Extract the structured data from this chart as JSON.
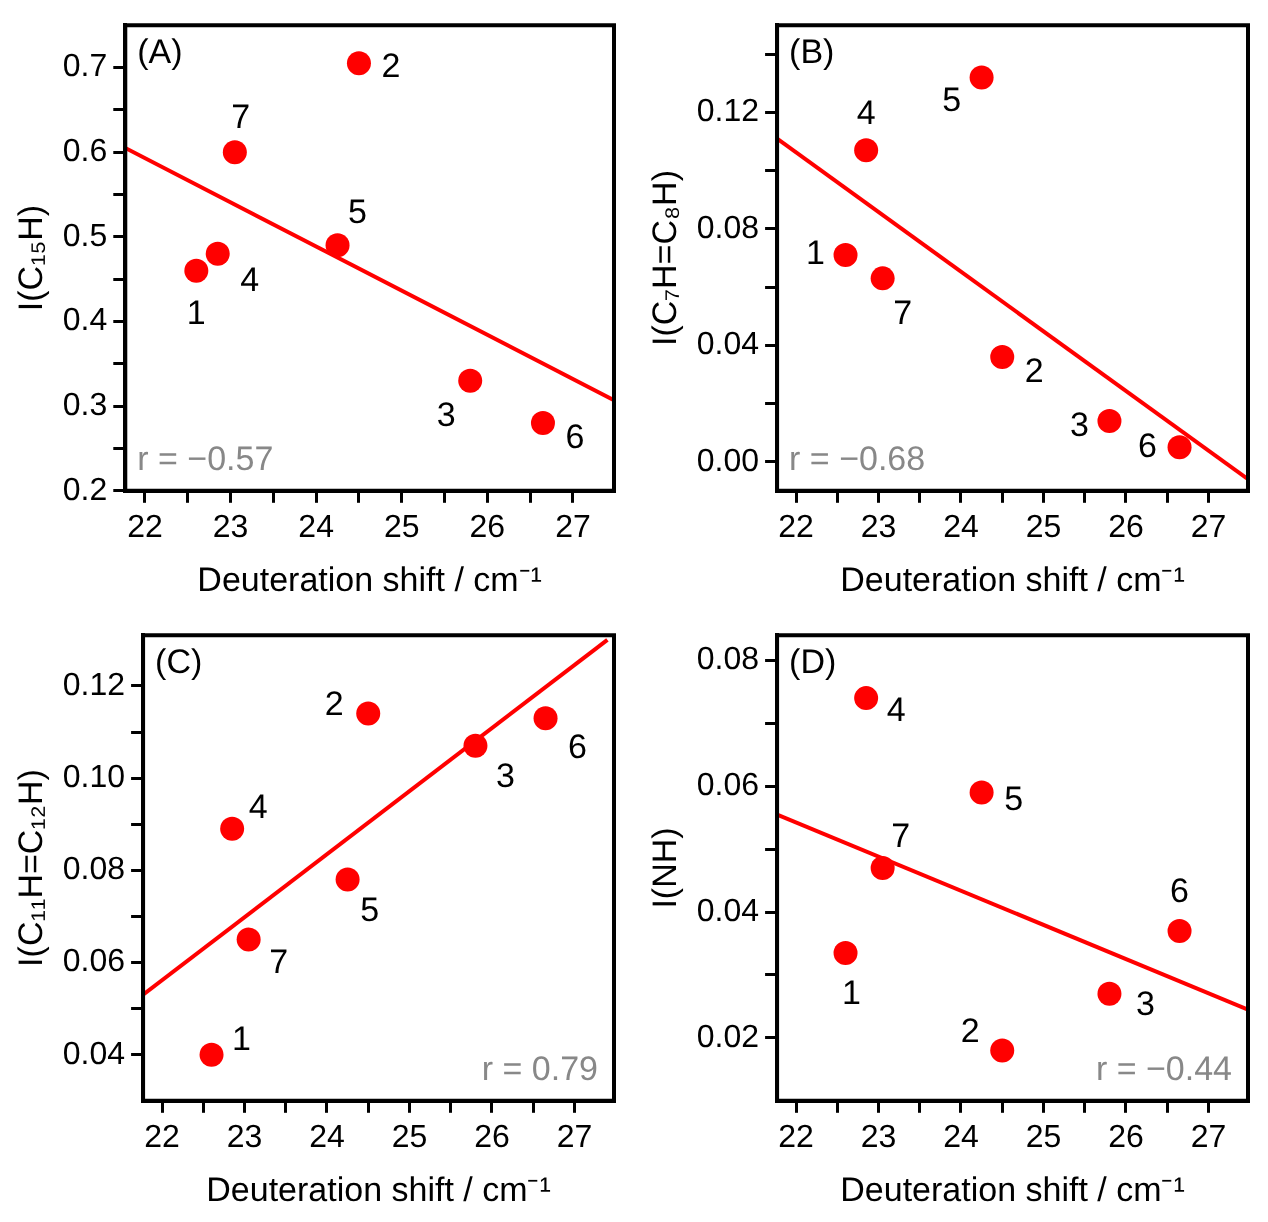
{
  "chart_data": [
    {
      "type": "scatter",
      "xlabel": "Deuteration shift / cm⁻¹",
      "ylabel": "I(C₁₅H)",
      "xlim": [
        21.77,
        27.48
      ],
      "ylim": [
        0.2,
        0.75
      ],
      "xticks": [
        22,
        {
          "value": 22.5,
          "label": null
        },
        23,
        {
          "value": 23.5,
          "label": null
        },
        24,
        {
          "value": 24.5,
          "label": null
        },
        25,
        {
          "value": 25.5,
          "label": null
        },
        26,
        {
          "value": 26.5,
          "label": null
        },
        27
      ],
      "yticks": [
        0.2,
        {
          "value": 0.25,
          "label": null
        },
        0.3,
        {
          "value": 0.35,
          "label": null
        },
        0.4,
        {
          "value": 0.45,
          "label": null
        },
        0.5,
        {
          "value": 0.55,
          "label": null
        },
        0.6,
        {
          "value": 0.65,
          "label": null
        },
        0.7
      ],
      "annotations": [
        "(A)",
        "r = −0.57",
        {
          "text": "1",
          "x": 22.6,
          "y": 0.46
        },
        {
          "text": "2",
          "x": 24.5,
          "y": 0.705
        },
        {
          "text": "3",
          "x": 25.8,
          "y": 0.33
        },
        {
          "text": "4",
          "x": 22.85,
          "y": 0.48
        },
        {
          "text": "5",
          "x": 24.25,
          "y": 0.49
        },
        {
          "text": "6",
          "x": 26.65,
          "y": 0.28
        },
        {
          "text": "7",
          "x": 23.05,
          "y": 0.6
        }
      ],
      "series": [
        {
          "marker": "circle",
          "color": "#ff0000",
          "x": [
            22.6,
            24.5,
            25.8,
            22.85,
            24.25,
            26.65,
            23.05
          ],
          "values": [
            0.46,
            0.705,
            0.33,
            0.48,
            0.49,
            0.28,
            0.6
          ]
        },
        {
          "type": "line",
          "color": "#ff0000",
          "x": [
            21.77,
            27.48
          ],
          "values": [
            0.605,
            0.307
          ]
        }
      ]
    },
    {
      "type": "scatter",
      "xlabel": "Deuteration shift / cm⁻¹",
      "ylabel": "I(C₇H=C₈H)",
      "xlim": [
        21.77,
        27.48
      ],
      "ylim": [
        -0.01,
        0.15
      ],
      "xticks": [
        22,
        {
          "value": 22.5,
          "label": null
        },
        23,
        {
          "value": 23.5,
          "label": null
        },
        24,
        {
          "value": 24.5,
          "label": null
        },
        25,
        {
          "value": 25.5,
          "label": null
        },
        26,
        {
          "value": 26.5,
          "label": null
        },
        27
      ],
      "yticks": [
        {
          "value": 0,
          "label": "0.00"
        },
        {
          "value": 0.02,
          "label": null
        },
        0.04,
        {
          "value": 0.06,
          "label": null
        },
        0.08,
        {
          "value": 0.1,
          "label": null
        },
        0.12,
        {
          "value": 0.14,
          "label": null
        }
      ],
      "annotations": [
        "(B)",
        "r = −0.68",
        {
          "text": "1",
          "x": 22.6,
          "y": 0.071
        },
        {
          "text": "2",
          "x": 24.5,
          "y": 0.036
        },
        {
          "text": "3",
          "x": 25.8,
          "y": 0.014
        },
        {
          "text": "4",
          "x": 22.85,
          "y": 0.107
        },
        {
          "text": "5",
          "x": 24.25,
          "y": 0.132
        },
        {
          "text": "6",
          "x": 26.65,
          "y": 0.005
        },
        {
          "text": "7",
          "x": 23.05,
          "y": 0.063
        }
      ],
      "series": [
        {
          "marker": "circle",
          "color": "#ff0000",
          "x": [
            22.6,
            24.5,
            25.8,
            22.85,
            24.25,
            26.65,
            23.05
          ],
          "values": [
            0.071,
            0.036,
            0.014,
            0.107,
            0.132,
            0.005,
            0.063
          ]
        },
        {
          "type": "line",
          "color": "#ff0000",
          "x": [
            21.77,
            27.48
          ],
          "values": [
            0.111,
            -0.006
          ]
        }
      ]
    },
    {
      "type": "scatter",
      "xlabel": "Deuteration shift / cm⁻¹",
      "ylabel": "I(C₁₁H=C₁₂H)",
      "xlim": [
        21.77,
        27.48
      ],
      "ylim": [
        0.03,
        0.131
      ],
      "xticks": [
        22,
        {
          "value": 22.5,
          "label": null
        },
        23,
        {
          "value": 23.5,
          "label": null
        },
        24,
        {
          "value": 24.5,
          "label": null
        },
        25,
        {
          "value": 25.5,
          "label": null
        },
        26,
        {
          "value": 26.5,
          "label": null
        },
        27
      ],
      "yticks": [
        0.04,
        {
          "value": 0.05,
          "label": null
        },
        0.06,
        {
          "value": 0.07,
          "label": null
        },
        0.08,
        {
          "value": 0.09,
          "label": null
        },
        {
          "value": 0.1,
          "label": "0.10"
        },
        {
          "value": 0.11,
          "label": null
        },
        0.12
      ],
      "annotations": [
        "(C)",
        "r = 0.79",
        {
          "text": "1",
          "x": 22.6,
          "y": 0.04
        },
        {
          "text": "2",
          "x": 24.5,
          "y": 0.114
        },
        {
          "text": "3",
          "x": 25.8,
          "y": 0.107
        },
        {
          "text": "4",
          "x": 22.85,
          "y": 0.089
        },
        {
          "text": "5",
          "x": 24.25,
          "y": 0.078
        },
        {
          "text": "6",
          "x": 26.65,
          "y": 0.113
        },
        {
          "text": "7",
          "x": 23.05,
          "y": 0.065
        }
      ],
      "series": [
        {
          "marker": "circle",
          "color": "#ff0000",
          "x": [
            22.6,
            24.5,
            25.8,
            22.85,
            24.25,
            26.65,
            23.05
          ],
          "values": [
            0.04,
            0.114,
            0.107,
            0.089,
            0.078,
            0.113,
            0.065
          ]
        },
        {
          "type": "line",
          "color": "#ff0000",
          "x": [
            21.77,
            27.4
          ],
          "values": [
            0.053,
            0.13
          ]
        }
      ]
    },
    {
      "type": "scatter",
      "xlabel": "Deuteration shift / cm⁻¹",
      "ylabel": "I(NH)",
      "xlim": [
        21.77,
        27.48
      ],
      "ylim": [
        0.01,
        0.084
      ],
      "xticks": [
        22,
        {
          "value": 22.5,
          "label": null
        },
        23,
        {
          "value": 23.5,
          "label": null
        },
        24,
        {
          "value": 24.5,
          "label": null
        },
        25,
        {
          "value": 25.5,
          "label": null
        },
        26,
        {
          "value": 26.5,
          "label": null
        },
        27
      ],
      "yticks": [
        0.02,
        {
          "value": 0.03,
          "label": null
        },
        0.04,
        {
          "value": 0.05,
          "label": null
        },
        0.06,
        {
          "value": 0.07,
          "label": null
        },
        0.08
      ],
      "annotations": [
        "(D)",
        "r = −0.44",
        {
          "text": "1",
          "x": 22.6,
          "y": 0.0335
        },
        {
          "text": "2",
          "x": 24.5,
          "y": 0.018
        },
        {
          "text": "3",
          "x": 25.8,
          "y": 0.027
        },
        {
          "text": "4",
          "x": 22.85,
          "y": 0.074
        },
        {
          "text": "5",
          "x": 24.25,
          "y": 0.059
        },
        {
          "text": "6",
          "x": 26.65,
          "y": 0.037
        },
        {
          "text": "7",
          "x": 23.05,
          "y": 0.047
        }
      ],
      "series": [
        {
          "marker": "circle",
          "color": "#ff0000",
          "x": [
            22.6,
            24.5,
            25.8,
            22.85,
            24.25,
            26.65,
            23.05
          ],
          "values": [
            0.0335,
            0.018,
            0.027,
            0.074,
            0.059,
            0.037,
            0.047
          ]
        },
        {
          "type": "line",
          "color": "#ff0000",
          "x": [
            21.77,
            27.48
          ],
          "values": [
            0.0555,
            0.0245
          ]
        }
      ]
    }
  ]
}
